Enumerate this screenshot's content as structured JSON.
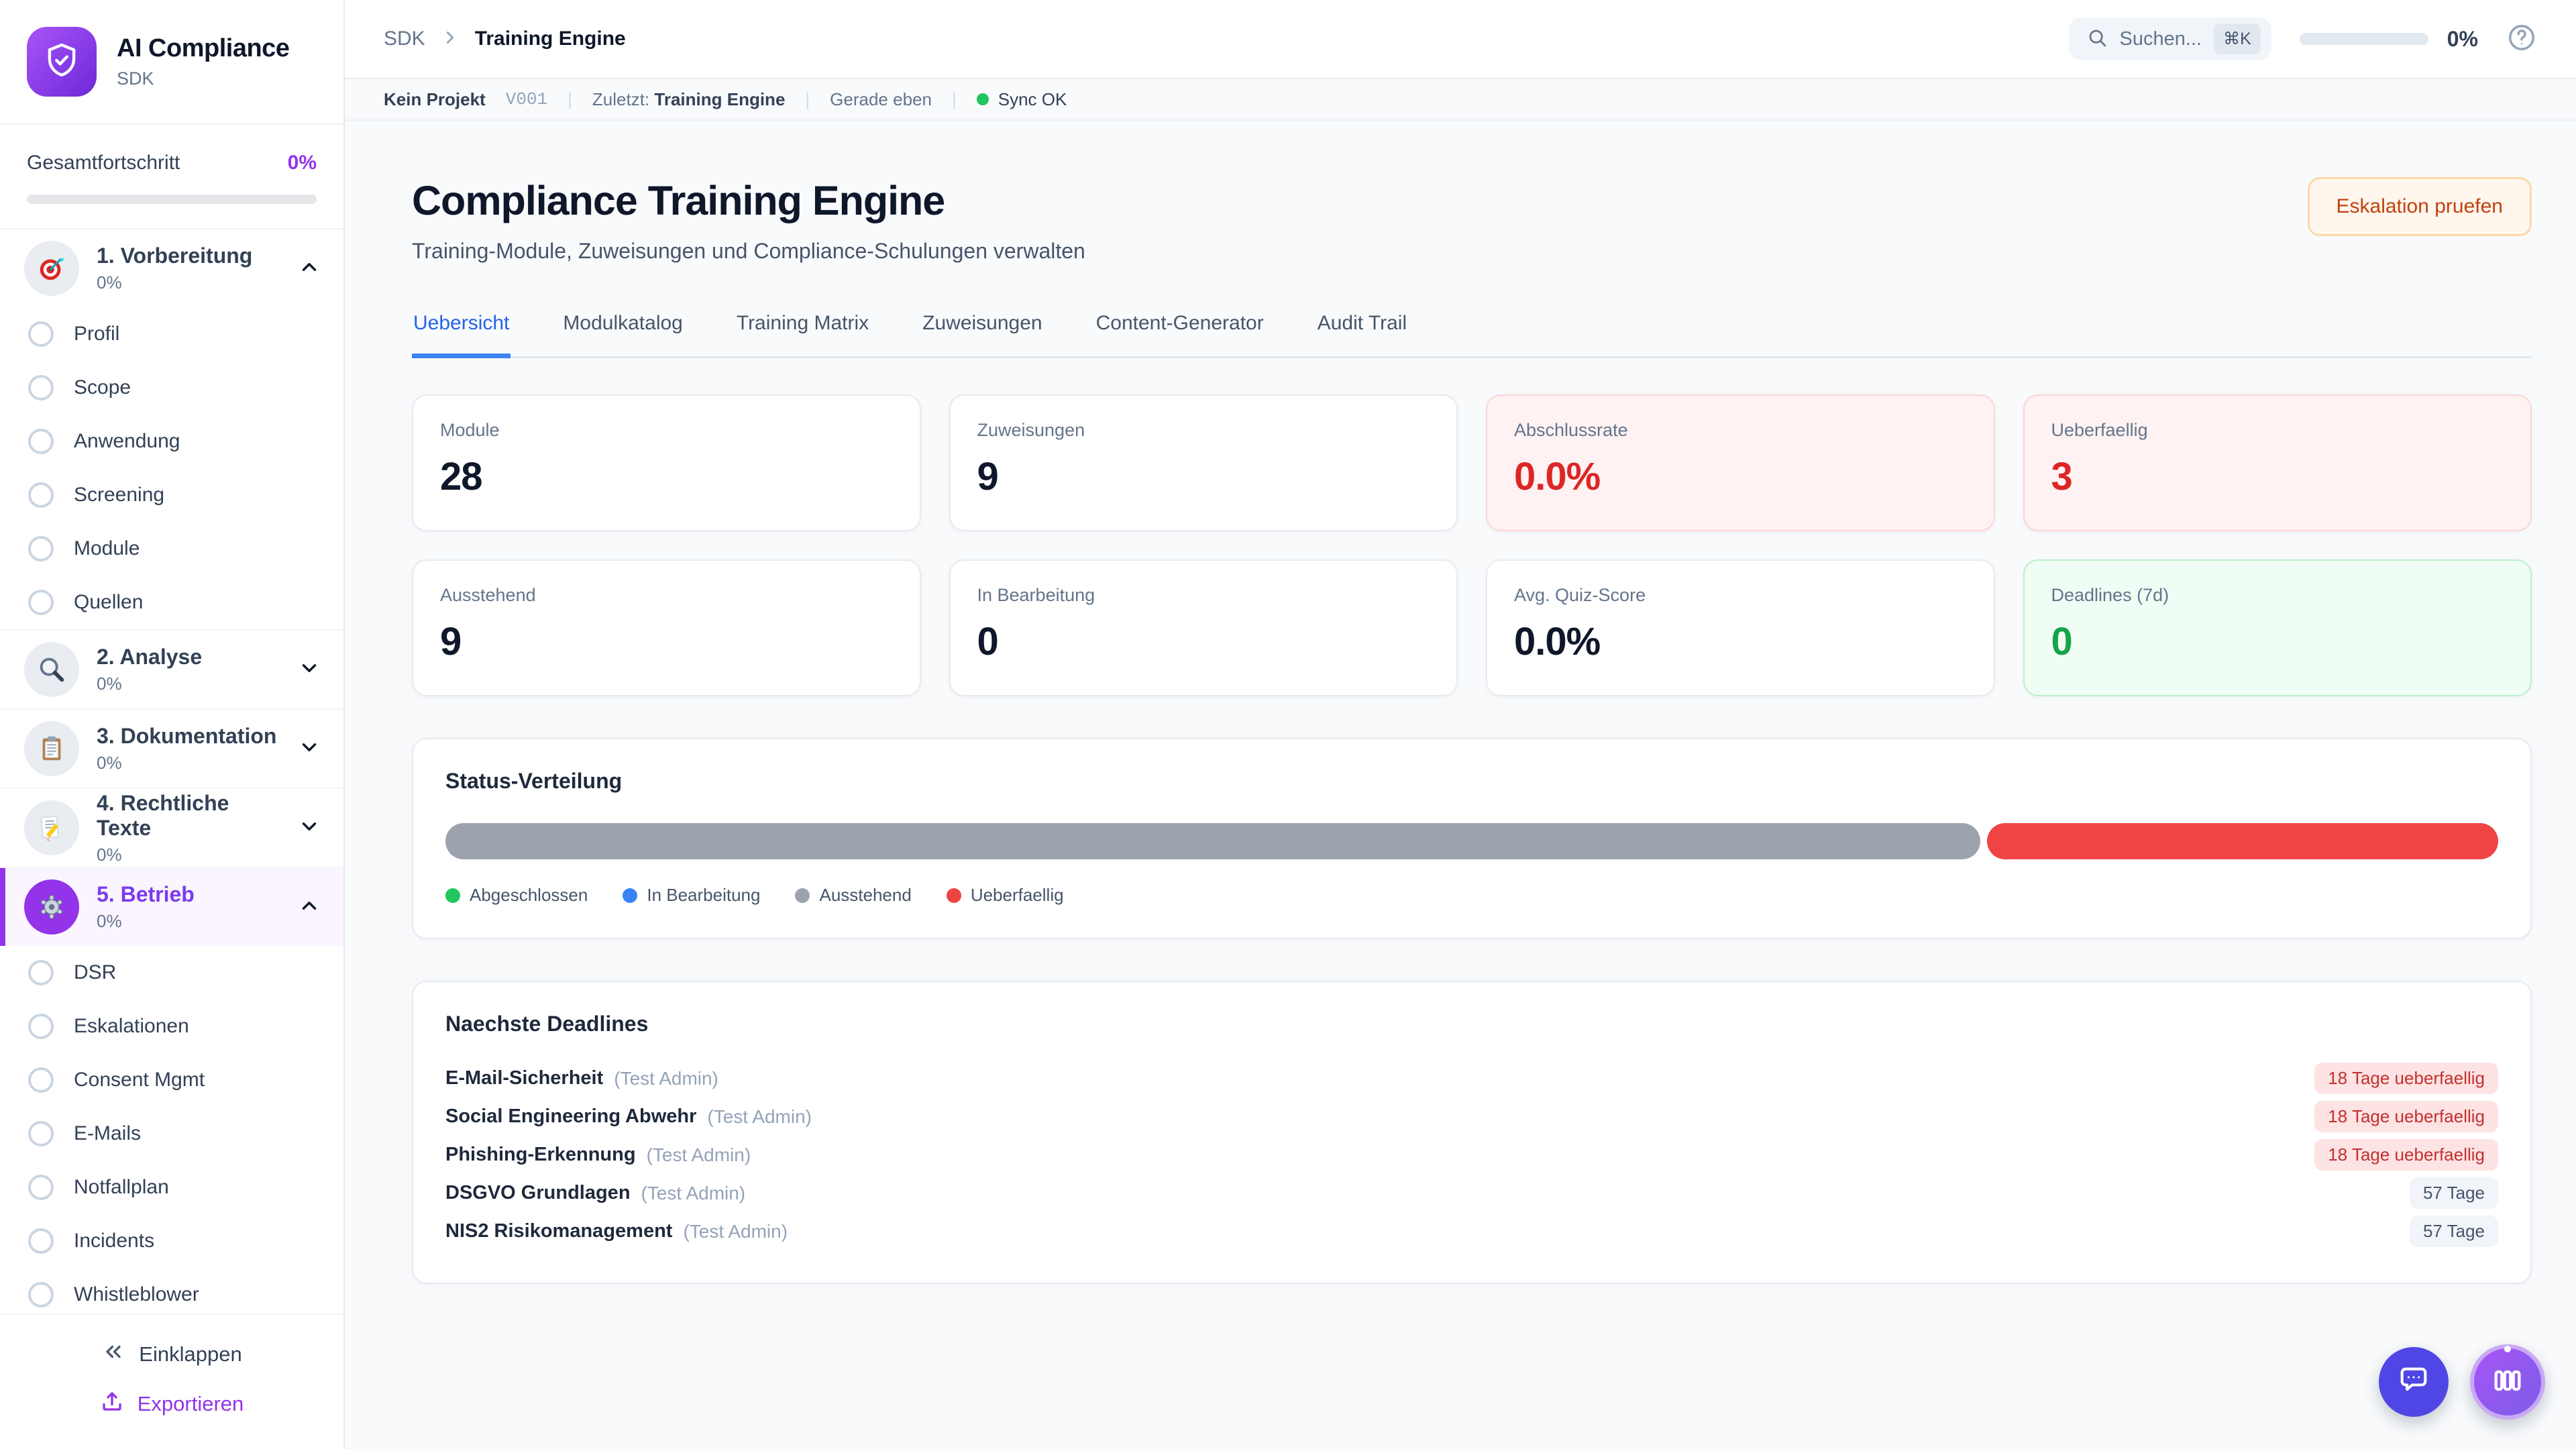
{
  "app": {
    "name": "AI Compliance",
    "subtitle": "SDK"
  },
  "sidebar": {
    "overall_label": "Gesamtfortschritt",
    "overall_value": "0%",
    "overall_progress_pct": 0,
    "sections": [
      {
        "icon": "dart-target",
        "label": "1. Vorbereitung",
        "progress": "0%",
        "expanded": true,
        "items": [
          "Profil",
          "Scope",
          "Anwendung",
          "Screening",
          "Module",
          "Quellen"
        ]
      },
      {
        "icon": "magnifier",
        "label": "2. Analyse",
        "progress": "0%",
        "expanded": false,
        "items": []
      },
      {
        "icon": "clipboard",
        "label": "3. Dokumentation",
        "progress": "0%",
        "expanded": false,
        "items": []
      },
      {
        "icon": "memo-pencil",
        "label": "4. Rechtliche Texte",
        "progress": "0%",
        "expanded": false,
        "items": []
      },
      {
        "icon": "gear",
        "label": "5. Betrieb",
        "progress": "0%",
        "expanded": true,
        "active": true,
        "items": [
          "DSR",
          "Eskalationen",
          "Consent Mgmt",
          "E-Mails",
          "Notfallplan",
          "Incidents",
          "Whistleblower"
        ]
      }
    ],
    "collapse_label": "Einklappen",
    "export_label": "Exportieren"
  },
  "header": {
    "breadcrumb_root": "SDK",
    "breadcrumb_current": "Training Engine",
    "search_placeholder": "Suchen...",
    "search_shortcut": "⌘K",
    "progress_value": "0%",
    "progress_pct": 0
  },
  "statusbar": {
    "project": "Kein Projekt",
    "version": "V001",
    "last_label": "Zuletzt:",
    "last_value": "Training Engine",
    "time": "Gerade eben",
    "sync": "Sync OK"
  },
  "page": {
    "title": "Compliance Training Engine",
    "subtitle": "Training-Module, Zuweisungen und Compliance-Schulungen verwalten",
    "action_button": "Eskalation pruefen",
    "tabs": [
      "Uebersicht",
      "Modulkatalog",
      "Training Matrix",
      "Zuweisungen",
      "Content-Generator",
      "Audit Trail"
    ],
    "active_tab": "Uebersicht"
  },
  "stats": [
    {
      "label": "Module",
      "value": "28",
      "variant": "default"
    },
    {
      "label": "Zuweisungen",
      "value": "9",
      "variant": "default"
    },
    {
      "label": "Abschlussrate",
      "value": "0.0%",
      "variant": "danger"
    },
    {
      "label": "Ueberfaellig",
      "value": "3",
      "variant": "danger"
    },
    {
      "label": "Ausstehend",
      "value": "9",
      "variant": "default"
    },
    {
      "label": "In Bearbeitung",
      "value": "0",
      "variant": "default"
    },
    {
      "label": "Avg. Quiz-Score",
      "value": "0.0%",
      "variant": "default"
    },
    {
      "label": "Deadlines (7d)",
      "value": "0",
      "variant": "success"
    }
  ],
  "chart_data": {
    "type": "bar",
    "title": "Status-Verteilung",
    "segments": [
      {
        "label": "Abgeschlossen",
        "color": "#22c55e",
        "value": 0
      },
      {
        "label": "In Bearbeitung",
        "color": "#3b82f6",
        "value": 0
      },
      {
        "label": "Ausstehend",
        "color": "#9ca3af",
        "value": 9
      },
      {
        "label": "Ueberfaellig",
        "color": "#ef4444",
        "value": 3
      }
    ]
  },
  "deadlines": {
    "title": "Naechste Deadlines",
    "items": [
      {
        "name": "E-Mail-Sicherheit",
        "assignee": "(Test Admin)",
        "badge": "18 Tage ueberfaellig",
        "variant": "danger"
      },
      {
        "name": "Social Engineering Abwehr",
        "assignee": "(Test Admin)",
        "badge": "18 Tage ueberfaellig",
        "variant": "danger"
      },
      {
        "name": "Phishing-Erkennung",
        "assignee": "(Test Admin)",
        "badge": "18 Tage ueberfaellig",
        "variant": "danger"
      },
      {
        "name": "DSGVO Grundlagen",
        "assignee": "(Test Admin)",
        "badge": "57 Tage",
        "variant": "neutral"
      },
      {
        "name": "NIS2 Risikomanagement",
        "assignee": "(Test Admin)",
        "badge": "57 Tage",
        "variant": "neutral"
      }
    ]
  },
  "colors": {
    "accent_purple": "#9333ea",
    "tab_active_blue": "#2563eb",
    "danger_red": "#dc2626",
    "success_green": "#16a34a",
    "warn_orange": "#c2410c",
    "sync_green": "#22c55e"
  }
}
